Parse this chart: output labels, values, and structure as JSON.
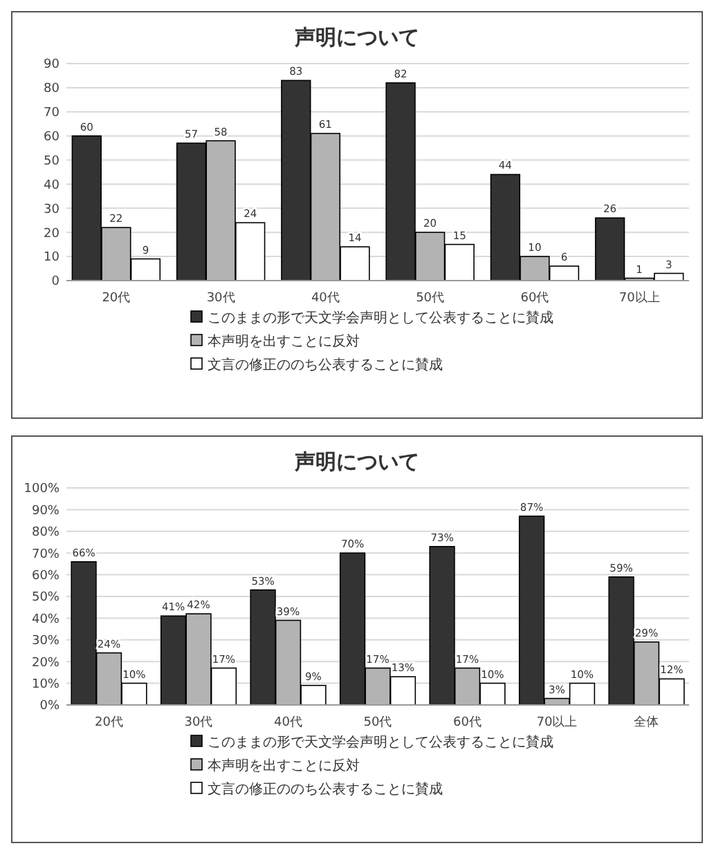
{
  "chart_data": [
    {
      "type": "bar",
      "title": "声明について",
      "categories": [
        "20代",
        "30代",
        "40代",
        "50代",
        "60代",
        "70以上"
      ],
      "series": [
        {
          "name": "このままの形で天文学会声明として公表することに賛成",
          "color": "#333333",
          "values": [
            60,
            57,
            83,
            82,
            44,
            26
          ]
        },
        {
          "name": "本声明を出すことに反対",
          "color": "#b3b3b3",
          "values": [
            22,
            58,
            61,
            20,
            10,
            1
          ]
        },
        {
          "name": "文言の修正ののち公表することに賛成",
          "color": "#ffffff",
          "values": [
            9,
            24,
            14,
            15,
            6,
            3
          ]
        }
      ],
      "ylim": [
        0,
        90
      ],
      "yticks": [
        0,
        10,
        20,
        30,
        40,
        50,
        60,
        70,
        80,
        90
      ],
      "grid": "y",
      "legend": "bottom",
      "data_labels": true
    },
    {
      "type": "bar",
      "title": "声明について",
      "categories": [
        "20代",
        "30代",
        "40代",
        "50代",
        "60代",
        "70以上",
        "全体"
      ],
      "series": [
        {
          "name": "このままの形で天文学会声明として公表することに賛成",
          "color": "#333333",
          "values": [
            66,
            41,
            53,
            70,
            73,
            87,
            59
          ],
          "value_labels": [
            "66%",
            "41%",
            "53%",
            "70%",
            "73%",
            "87%",
            "59%"
          ]
        },
        {
          "name": "本声明を出すことに反対",
          "color": "#b3b3b3",
          "values": [
            24,
            42,
            39,
            17,
            17,
            3,
            29
          ],
          "value_labels": [
            "24%",
            "42%",
            "39%",
            "17%",
            "17%",
            "3%",
            "29%"
          ]
        },
        {
          "name": "文言の修正ののち公表することに賛成",
          "color": "#ffffff",
          "values": [
            10,
            17,
            9,
            13,
            10,
            10,
            12
          ],
          "value_labels": [
            "10%",
            "17%",
            "9%",
            "13%",
            "10%",
            "10%",
            "12%"
          ]
        }
      ],
      "ylim": [
        0,
        100
      ],
      "yticks": [
        {
          "value": 0,
          "label": "0%"
        },
        {
          "value": 10,
          "label": "10%"
        },
        {
          "value": 20,
          "label": "20%"
        },
        {
          "value": 30,
          "label": "30%"
        },
        {
          "value": 40,
          "label": "40%"
        },
        {
          "value": 50,
          "label": "50%"
        },
        {
          "value": 60,
          "label": "60%"
        },
        {
          "value": 70,
          "label": "70%"
        },
        {
          "value": 80,
          "label": "80%"
        },
        {
          "value": 90,
          "label": "90%"
        },
        {
          "value": 100,
          "label": "100%"
        }
      ],
      "grid": "y",
      "legend": "bottom"
    }
  ]
}
